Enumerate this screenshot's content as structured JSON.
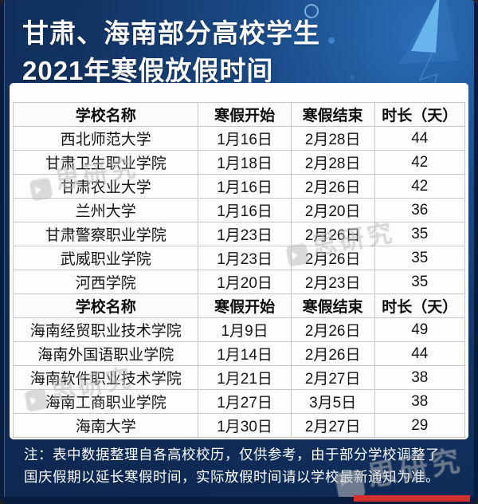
{
  "title": {
    "line1": "甘肃、海南部分高校学生",
    "line2": "2021年寒假放假时间"
  },
  "table": {
    "columns": [
      "学校名称",
      "寒假开始",
      "寒假结束",
      "时长（天）"
    ],
    "sections": [
      {
        "region": "甘肃",
        "rows": [
          {
            "school": "西北师范大学",
            "start": "1月16日",
            "end": "2月28日",
            "days": "44"
          },
          {
            "school": "甘肃卫生职业学院",
            "start": "1月18日",
            "end": "2月28日",
            "days": "42"
          },
          {
            "school": "甘肃农业大学",
            "start": "1月16日",
            "end": "2月26日",
            "days": "42"
          },
          {
            "school": "兰州大学",
            "start": "1月16日",
            "end": "2月20日",
            "days": "36"
          },
          {
            "school": "甘肃警察职业学院",
            "start": "1月23日",
            "end": "2月26日",
            "days": "35"
          },
          {
            "school": "武威职业学院",
            "start": "1月23日",
            "end": "2月26日",
            "days": "35"
          },
          {
            "school": "河西学院",
            "start": "1月20日",
            "end": "2月23日",
            "days": "35"
          }
        ]
      },
      {
        "region": "海南",
        "rows": [
          {
            "school": "海南经贸职业技术学院",
            "start": "1月9日",
            "end": "2月26日",
            "days": "49"
          },
          {
            "school": "海南外国语职业学院",
            "start": "1月14日",
            "end": "2月26日",
            "days": "44"
          },
          {
            "school": "海南软件职业技术学院",
            "start": "1月21日",
            "end": "2月27日",
            "days": "38"
          },
          {
            "school": "海南工商职业学院",
            "start": "1月27日",
            "end": "3月5日",
            "days": "38"
          },
          {
            "school": "海南大学",
            "start": "1月30日",
            "end": "2月27日",
            "days": "29"
          }
        ]
      }
    ]
  },
  "note": {
    "line1": "注：表中数据整理自各高校校历，仅供参考，由于部分学校调整了",
    "line2": "国庆假期以延长寒假时间，实际放假时间请以学校最新通知为准。"
  },
  "watermark": {
    "text": "思研究"
  },
  "colors": {
    "background_navy": "#0e2a55",
    "frame_navy": "#081c3e",
    "accent_red": "#d22f2f",
    "arrow_blue": "#6cb8ee",
    "table_border_gray": "#c2c7ce",
    "watermark_gray": "#b8b8b8"
  }
}
